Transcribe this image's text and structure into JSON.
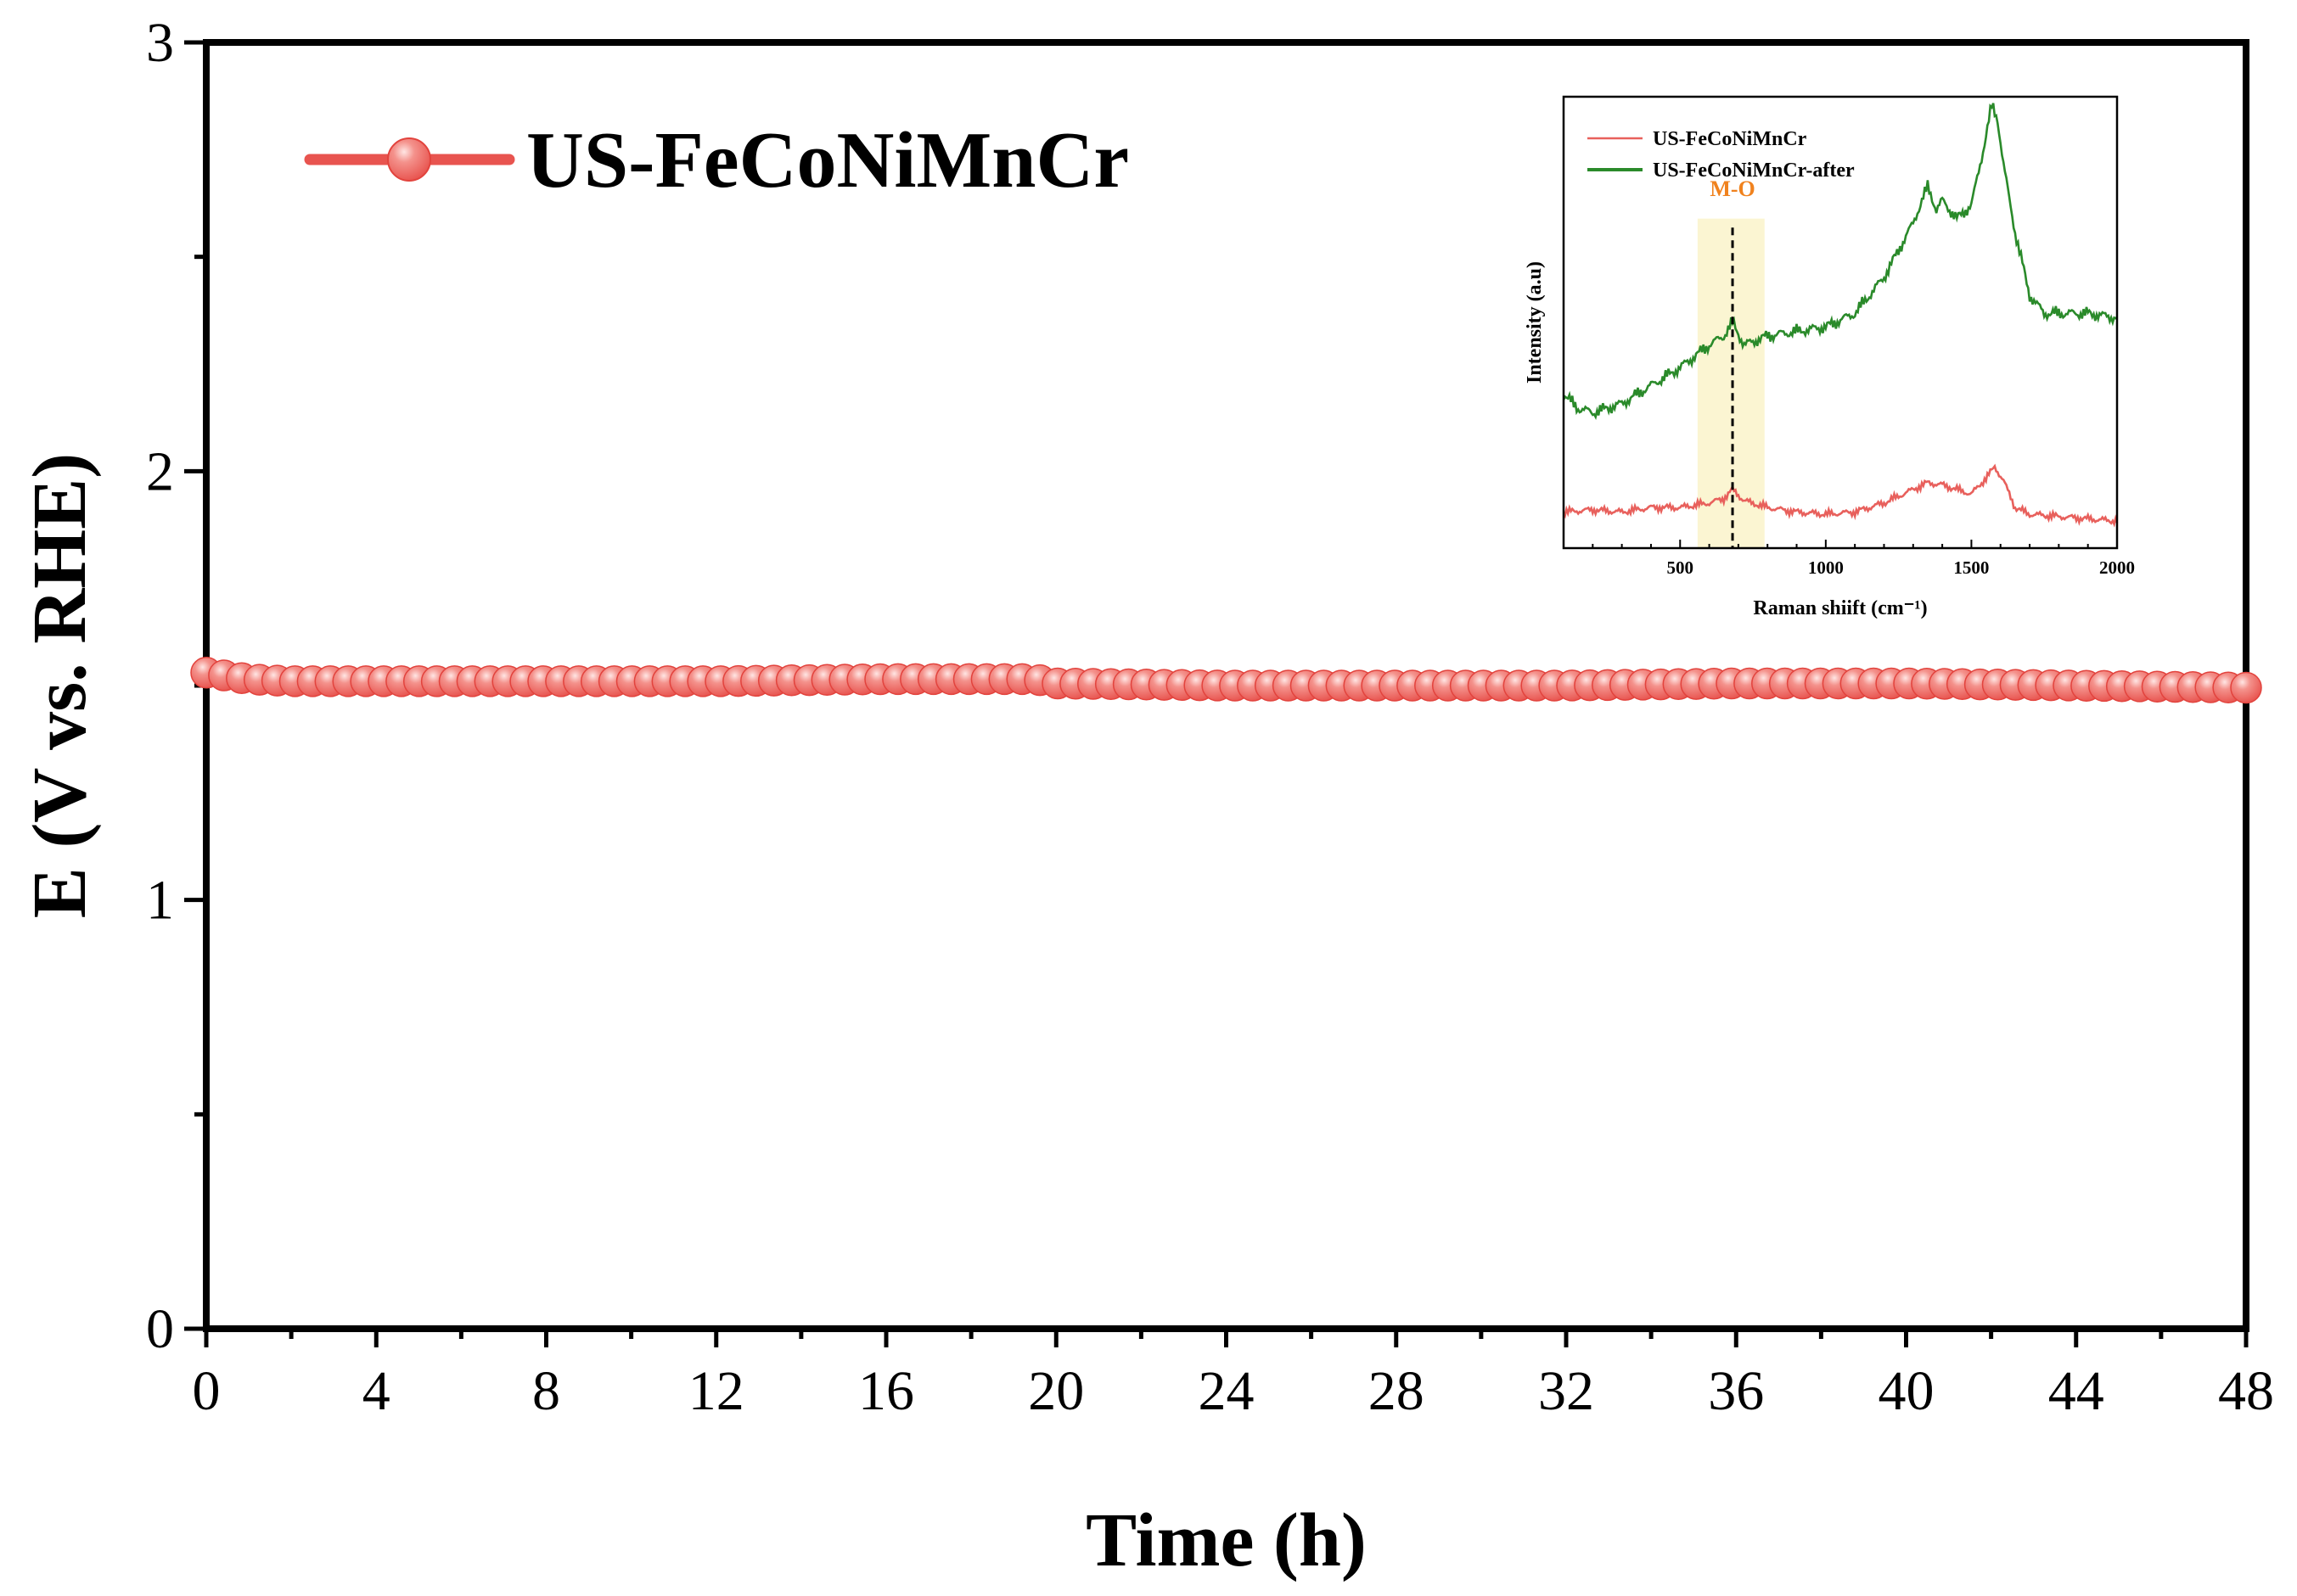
{
  "chart_data": [
    {
      "type": "line",
      "title": "",
      "xlabel": "Time (h)",
      "ylabel": "E (V vs. RHE)",
      "xlim": [
        0,
        48
      ],
      "ylim": [
        0,
        3
      ],
      "x_ticks": [
        0,
        4,
        8,
        12,
        16,
        20,
        24,
        28,
        32,
        36,
        40,
        44,
        48
      ],
      "x_tick_labels": [
        "0",
        "4",
        "8",
        "12",
        "16",
        "20",
        "24",
        "28",
        "32",
        "36",
        "40",
        "44",
        "48"
      ],
      "y_ticks": [
        0,
        1,
        2,
        3
      ],
      "y_tick_labels": [
        "0",
        "1",
        "2",
        "3"
      ],
      "legend_position": "top-left",
      "series": [
        {
          "name": "US-FeCoNiMnCr",
          "color": "#e8544f",
          "marker": "circle",
          "x": [
            0,
            1,
            2,
            4,
            8,
            12,
            16,
            19.5,
            20,
            24,
            28,
            32,
            36,
            40,
            44,
            48
          ],
          "y": [
            1.53,
            1.515,
            1.51,
            1.51,
            1.51,
            1.51,
            1.515,
            1.515,
            1.505,
            1.5,
            1.5,
            1.5,
            1.505,
            1.505,
            1.5,
            1.495
          ]
        }
      ]
    },
    {
      "type": "line",
      "title": "",
      "xlabel": "Raman shiift (cm⁻¹)",
      "ylabel": "Intensity (a.u)",
      "xlim": [
        100,
        2000
      ],
      "ylim": [
        0,
        100
      ],
      "x_ticks": [
        500,
        1000,
        1500,
        2000
      ],
      "x_tick_labels": [
        "500",
        "1000",
        "1500",
        "2000"
      ],
      "legend_position": "top-left",
      "annotation": {
        "label": "M-O",
        "x": 680,
        "band": [
          560,
          790
        ],
        "color": "#f0821e",
        "band_color": "#fbf5d2"
      },
      "series": [
        {
          "name": "US-FeCoNiMnCr",
          "color": "#e8605c",
          "x": [
            100,
            200,
            300,
            400,
            500,
            600,
            650,
            680,
            720,
            800,
            900,
            1000,
            1100,
            1200,
            1300,
            1350,
            1400,
            1450,
            1500,
            1550,
            1580,
            1610,
            1650,
            1700,
            1800,
            1900,
            2000
          ],
          "y": [
            8,
            8.5,
            8,
            9,
            9,
            10,
            11,
            13,
            10.5,
            9,
            8,
            7.5,
            8,
            10,
            13,
            14.5,
            14,
            13,
            12,
            15.5,
            18,
            15,
            9,
            7.5,
            7,
            6.5,
            6
          ]
        },
        {
          "name": "US-FeCoNiMnCr-after",
          "color": "#2a8a2a",
          "x": [
            100,
            150,
            200,
            300,
            400,
            500,
            600,
            650,
            680,
            720,
            800,
            900,
            1000,
            1100,
            1200,
            1250,
            1300,
            1330,
            1350,
            1380,
            1400,
            1450,
            1500,
            1540,
            1570,
            1590,
            1610,
            1650,
            1700,
            1750,
            1800,
            1900,
            2000
          ],
          "y": [
            34,
            31,
            30,
            32,
            36,
            40,
            45,
            47,
            50,
            45,
            47,
            48,
            49,
            52,
            60,
            66,
            72,
            77,
            80,
            75,
            77,
            73,
            76,
            88,
            98,
            95,
            85,
            70,
            56,
            52,
            52,
            52,
            51
          ]
        }
      ]
    }
  ]
}
